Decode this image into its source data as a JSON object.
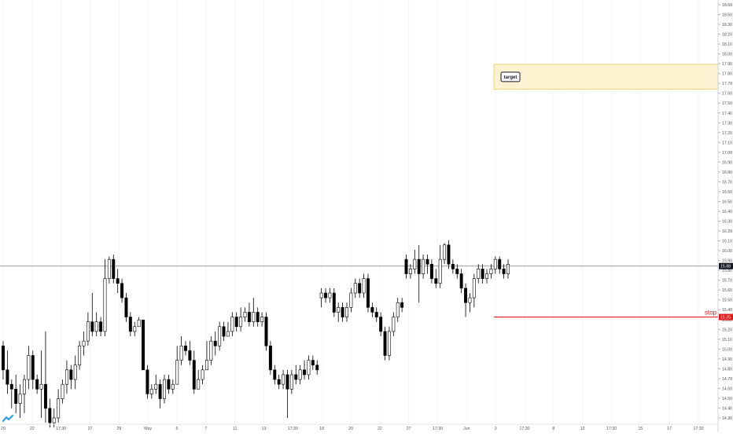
{
  "chart_data": {
    "type": "candlestick",
    "title": "",
    "price_axis": {
      "min": 14.3,
      "max": 18.6,
      "ticks": [
        "18.60",
        "18.50",
        "18.30",
        "18.20",
        "18.10",
        "18.00",
        "17.90",
        "17.80",
        "17.70",
        "17.60",
        "17.50",
        "17.40",
        "17.30",
        "17.20",
        "17.10",
        "17.00",
        "16.90",
        "16.80",
        "16.70",
        "16.60",
        "16.50",
        "16.40",
        "16.30",
        "16.20",
        "16.10",
        "16.00",
        "15.90",
        "15.80",
        "15.70",
        "15.60",
        "15.50",
        "15.40",
        "15.30",
        "15.20",
        "15.10",
        "15.00",
        "14.90",
        "14.80",
        "14.70",
        "14.60",
        "14.50",
        "14.40",
        "14.30"
      ]
    },
    "time_axis": {
      "labels": [
        "20",
        "22",
        "17:30",
        "27",
        "29",
        "May",
        "5",
        "7",
        "11",
        "13",
        "17:30",
        "18",
        "20",
        "22",
        "27",
        "17:30",
        "Jun",
        "3",
        "17:30",
        "8",
        "10",
        "17:30",
        "15",
        "17",
        "17:30"
      ]
    },
    "current_price": {
      "value": 15.88,
      "label": "15.88",
      "color": "#131722"
    },
    "stop": {
      "value": 15.35,
      "text": "stop",
      "label": "15.35",
      "color": "#e8191a"
    },
    "target": {
      "low": 17.72,
      "high": 17.98,
      "text": "target",
      "fill": "#fdf2d0",
      "border": "#f0d27a"
    },
    "candles": [
      [
        15.05,
        14.8,
        15.1,
        14.7
      ],
      [
        14.8,
        14.65,
        15.0,
        14.55
      ],
      [
        14.65,
        14.6,
        14.7,
        14.4
      ],
      [
        14.6,
        14.45,
        14.75,
        14.35
      ],
      [
        14.45,
        14.55,
        14.65,
        14.3
      ],
      [
        14.55,
        14.7,
        14.75,
        14.35
      ],
      [
        14.7,
        14.95,
        15.05,
        14.6
      ],
      [
        14.95,
        14.7,
        15.0,
        14.6
      ],
      [
        14.7,
        14.6,
        14.75,
        14.55
      ],
      [
        14.6,
        14.65,
        15.0,
        14.3
      ],
      [
        14.65,
        14.4,
        15.2,
        14.25
      ],
      [
        14.4,
        14.25,
        14.5,
        14.2
      ],
      [
        14.25,
        14.3,
        14.4,
        14.2
      ],
      [
        14.3,
        14.5,
        14.6,
        14.25
      ],
      [
        14.5,
        14.65,
        14.7,
        14.45
      ],
      [
        14.65,
        14.8,
        14.9,
        14.55
      ],
      [
        14.8,
        14.7,
        14.85,
        14.6
      ],
      [
        14.7,
        14.85,
        14.95,
        14.6
      ],
      [
        14.85,
        15.05,
        15.1,
        14.8
      ],
      [
        15.05,
        15.1,
        15.2,
        14.95
      ],
      [
        15.1,
        15.3,
        15.4,
        15.05
      ],
      [
        15.3,
        15.2,
        15.6,
        15.15
      ],
      [
        15.2,
        15.3,
        15.4,
        15.15
      ],
      [
        15.3,
        15.2,
        15.35,
        15.15
      ],
      [
        15.2,
        15.75,
        15.95,
        15.15
      ],
      [
        15.75,
        15.95,
        15.98,
        15.7
      ],
      [
        15.95,
        15.75,
        16.0,
        15.7
      ],
      [
        15.75,
        15.7,
        15.85,
        15.6
      ],
      [
        15.7,
        15.55,
        15.75,
        15.5
      ],
      [
        15.55,
        15.35,
        15.6,
        15.3
      ],
      [
        15.35,
        15.2,
        15.4,
        15.15
      ],
      [
        15.2,
        15.25,
        15.3,
        15.15
      ],
      [
        15.25,
        15.32,
        15.35,
        15.3
      ],
      [
        15.32,
        14.8,
        15.0,
        14.8
      ],
      [
        14.8,
        14.55,
        14.85,
        14.5
      ],
      [
        14.55,
        14.6,
        14.65,
        14.5
      ],
      [
        14.6,
        14.65,
        14.75,
        14.55
      ],
      [
        14.65,
        14.5,
        14.7,
        14.4
      ],
      [
        14.5,
        14.7,
        14.75,
        14.45
      ],
      [
        14.7,
        14.6,
        14.75,
        14.55
      ],
      [
        14.6,
        14.65,
        14.7,
        14.55
      ],
      [
        14.65,
        14.9,
        15.05,
        14.85
      ],
      [
        14.9,
        15.05,
        15.15,
        14.85
      ],
      [
        15.05,
        15.0,
        15.1,
        14.95
      ],
      [
        15.0,
        14.9,
        15.1,
        14.85
      ],
      [
        14.9,
        14.6,
        15.0,
        14.55
      ],
      [
        14.6,
        14.7,
        14.8,
        14.6
      ],
      [
        14.7,
        14.8,
        14.85,
        14.65
      ],
      [
        14.8,
        14.9,
        15.1,
        14.8
      ],
      [
        14.9,
        15.1,
        15.15,
        14.85
      ],
      [
        15.1,
        15.05,
        15.2,
        14.95
      ],
      [
        15.05,
        15.25,
        15.3,
        15.0
      ],
      [
        15.25,
        15.15,
        15.3,
        15.1
      ],
      [
        15.15,
        15.2,
        15.3,
        15.15
      ],
      [
        15.2,
        15.35,
        15.4,
        15.15
      ],
      [
        15.35,
        15.25,
        15.4,
        15.2
      ],
      [
        15.25,
        15.35,
        15.45,
        15.2
      ],
      [
        15.35,
        15.4,
        15.45,
        15.3
      ],
      [
        15.4,
        15.3,
        15.5,
        15.25
      ],
      [
        15.3,
        15.4,
        15.55,
        15.25
      ],
      [
        15.4,
        15.3,
        15.45,
        15.25
      ],
      [
        15.3,
        15.35,
        15.4,
        15.25
      ],
      [
        15.35,
        15.05,
        15.4,
        15.0
      ],
      [
        15.05,
        14.8,
        15.1,
        14.75
      ],
      [
        14.8,
        14.7,
        14.85,
        14.65
      ],
      [
        14.7,
        14.65,
        14.75,
        14.6
      ],
      [
        14.65,
        14.75,
        14.8,
        14.6
      ],
      [
        14.75,
        14.6,
        14.8,
        14.3
      ],
      [
        14.6,
        14.75,
        14.8,
        14.55
      ],
      [
        14.75,
        14.7,
        14.85,
        14.65
      ],
      [
        14.7,
        14.8,
        14.85,
        14.65
      ],
      [
        14.8,
        14.75,
        14.9,
        14.7
      ],
      [
        14.75,
        14.9,
        14.95,
        14.7
      ],
      [
        14.9,
        14.85,
        14.95,
        14.8
      ],
      [
        14.85,
        14.8,
        14.9,
        14.75
      ],
      [
        15.55,
        15.6,
        15.65,
        15.45
      ],
      [
        15.6,
        15.55,
        15.65,
        15.5
      ],
      [
        15.55,
        15.6,
        15.65,
        15.5
      ],
      [
        15.6,
        15.4,
        15.65,
        15.35
      ],
      [
        15.4,
        15.45,
        15.5,
        15.3
      ],
      [
        15.45,
        15.35,
        15.5,
        15.3
      ],
      [
        15.35,
        15.45,
        15.5,
        15.3
      ],
      [
        15.45,
        15.6,
        15.65,
        15.4
      ],
      [
        15.6,
        15.7,
        15.75,
        15.55
      ],
      [
        15.7,
        15.6,
        15.75,
        15.55
      ],
      [
        15.6,
        15.75,
        15.8,
        15.55
      ],
      [
        15.75,
        15.45,
        15.8,
        15.4
      ],
      [
        15.45,
        15.4,
        15.5,
        15.35
      ],
      [
        15.4,
        15.35,
        15.45,
        15.3
      ],
      [
        15.35,
        15.2,
        15.4,
        15.15
      ],
      [
        15.2,
        14.95,
        15.25,
        14.9
      ],
      [
        14.95,
        15.2,
        15.25,
        14.9
      ],
      [
        15.2,
        15.35,
        15.4,
        15.15
      ],
      [
        15.35,
        15.5,
        15.55,
        15.3
      ],
      [
        15.5,
        15.45,
        15.55,
        15.4
      ],
      [
        15.95,
        15.8,
        16.0,
        15.75
      ],
      [
        15.8,
        15.85,
        15.9,
        15.75
      ],
      [
        15.85,
        15.95,
        16.05,
        15.8
      ],
      [
        15.95,
        15.8,
        16.1,
        15.5
      ],
      [
        15.8,
        15.95,
        16.0,
        15.75
      ],
      [
        15.95,
        15.9,
        16.0,
        15.8
      ],
      [
        15.9,
        15.75,
        15.95,
        15.7
      ],
      [
        15.75,
        15.7,
        15.85,
        15.65
      ],
      [
        15.7,
        15.95,
        16.1,
        15.65
      ],
      [
        15.95,
        16.1,
        16.12,
        15.9
      ],
      [
        16.1,
        15.9,
        16.15,
        15.85
      ],
      [
        15.9,
        15.85,
        15.95,
        15.8
      ],
      [
        15.85,
        15.8,
        15.9,
        15.75
      ],
      [
        15.8,
        15.65,
        15.85,
        15.6
      ],
      [
        15.65,
        15.5,
        15.7,
        15.35
      ],
      [
        15.5,
        15.55,
        15.6,
        15.4
      ],
      [
        15.55,
        15.75,
        15.8,
        15.45
      ],
      [
        15.75,
        15.85,
        15.9,
        15.7
      ],
      [
        15.85,
        15.75,
        15.9,
        15.7
      ],
      [
        15.75,
        15.8,
        15.85,
        15.7
      ],
      [
        15.8,
        15.85,
        15.9,
        15.75
      ],
      [
        15.85,
        15.95,
        15.98,
        15.8
      ],
      [
        15.95,
        15.85,
        15.98,
        15.8
      ],
      [
        15.85,
        15.8,
        15.9,
        15.75
      ],
      [
        15.8,
        15.9,
        15.95,
        15.75
      ]
    ]
  }
}
